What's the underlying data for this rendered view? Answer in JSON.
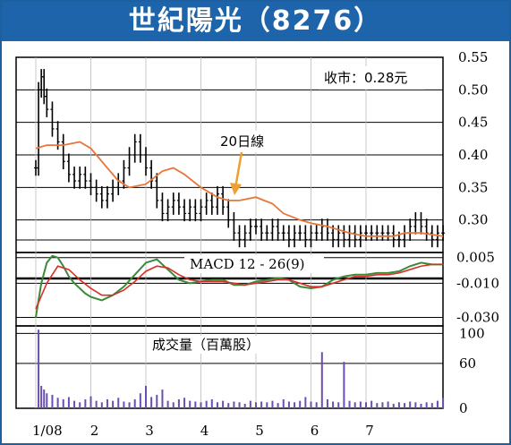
{
  "title": "世紀陽光（8276）",
  "price_label": "收市：0.28元",
  "ma_label": "20日線",
  "macd_label": "MACD 12 - 26(9)",
  "volume_label": "成交量（百萬股）",
  "colors": {
    "title_bg": "#1e64aa",
    "frame": "#1e5fa0",
    "candle": "#000000",
    "ma": "#e8763a",
    "macd_green": "#3a8a3a",
    "macd_red": "#d83028",
    "volume": "#6a4fb0",
    "arrow": "#f0a030"
  },
  "chart_data": [
    {
      "type": "line",
      "panel": "price",
      "title": "收市：0.28元",
      "x_ticks": [
        "1/08",
        "2",
        "3",
        "4",
        "5",
        "6",
        "7"
      ],
      "y_ticks": [
        "0.55",
        "0.50",
        "0.45",
        "0.40",
        "0.35",
        "0.30"
      ],
      "ylim": [
        0.25,
        0.55
      ],
      "series": [
        {
          "name": "20日線",
          "x": [
            0,
            0.2,
            0.5,
            0.8,
            1.0,
            1.3,
            1.5,
            1.7,
            2.0,
            2.3,
            2.5,
            2.7,
            3.0,
            3.3,
            3.5,
            3.7,
            4.0,
            4.3,
            4.5,
            4.8,
            5.0,
            5.3,
            5.5,
            5.7,
            6.0,
            6.3,
            6.5,
            6.7,
            7.0,
            7.4
          ],
          "values": [
            0.41,
            0.415,
            0.415,
            0.42,
            0.41,
            0.38,
            0.36,
            0.35,
            0.355,
            0.375,
            0.38,
            0.37,
            0.35,
            0.335,
            0.33,
            0.33,
            0.335,
            0.325,
            0.31,
            0.3,
            0.295,
            0.29,
            0.285,
            0.28,
            0.275,
            0.275,
            0.275,
            0.28,
            0.28,
            0.275
          ]
        },
        {
          "name": "price",
          "x": [
            0,
            0.05,
            0.1,
            0.15,
            0.2,
            0.3,
            0.4,
            0.5,
            0.6,
            0.7,
            0.8,
            0.9,
            1.0,
            1.1,
            1.2,
            1.3,
            1.4,
            1.5,
            1.6,
            1.7,
            1.8,
            1.9,
            2.0,
            2.1,
            2.2,
            2.3,
            2.4,
            2.5,
            2.6,
            2.7,
            2.8,
            2.9,
            3.0,
            3.1,
            3.2,
            3.3,
            3.4,
            3.5,
            3.6,
            3.7,
            3.8,
            3.9,
            4.0,
            4.1,
            4.2,
            4.3,
            4.4,
            4.5,
            4.6,
            4.7,
            4.8,
            4.9,
            5.0,
            5.1,
            5.2,
            5.3,
            5.4,
            5.5,
            5.6,
            5.7,
            5.8,
            5.9,
            6.0,
            6.1,
            6.2,
            6.3,
            6.4,
            6.5,
            6.6,
            6.7,
            6.8,
            6.9,
            7.0,
            7.1,
            7.2,
            7.3,
            7.4
          ],
          "values": [
            0.38,
            0.5,
            0.52,
            0.49,
            0.47,
            0.44,
            0.42,
            0.39,
            0.37,
            0.36,
            0.37,
            0.36,
            0.35,
            0.34,
            0.33,
            0.34,
            0.35,
            0.36,
            0.38,
            0.4,
            0.42,
            0.4,
            0.38,
            0.36,
            0.33,
            0.31,
            0.32,
            0.33,
            0.32,
            0.31,
            0.32,
            0.31,
            0.32,
            0.33,
            0.32,
            0.34,
            0.32,
            0.3,
            0.28,
            0.27,
            0.28,
            0.29,
            0.29,
            0.28,
            0.28,
            0.29,
            0.28,
            0.28,
            0.27,
            0.28,
            0.28,
            0.27,
            0.28,
            0.28,
            0.29,
            0.28,
            0.27,
            0.28,
            0.27,
            0.28,
            0.27,
            0.28,
            0.28,
            0.28,
            0.28,
            0.28,
            0.28,
            0.27,
            0.27,
            0.28,
            0.29,
            0.3,
            0.29,
            0.28,
            0.27,
            0.28,
            0.28
          ]
        }
      ]
    },
    {
      "type": "line",
      "panel": "macd",
      "title": "MACD 12 - 26(9)",
      "y_ticks": [
        "0.005",
        "-0.010",
        "-0.030"
      ],
      "ylim": [
        -0.035,
        0.008
      ],
      "series": [
        {
          "name": "MACD",
          "x": [
            0,
            0.1,
            0.2,
            0.3,
            0.4,
            0.5,
            0.6,
            0.7,
            0.8,
            0.9,
            1.0,
            1.2,
            1.4,
            1.6,
            1.8,
            2.0,
            2.2,
            2.4,
            2.6,
            2.8,
            3.0,
            3.2,
            3.4,
            3.6,
            3.8,
            4.0,
            4.2,
            4.4,
            4.6,
            4.8,
            5.0,
            5.2,
            5.4,
            5.6,
            5.8,
            6.0,
            6.2,
            6.4,
            6.6,
            6.8,
            7.0,
            7.2,
            7.4
          ],
          "values": [
            -0.03,
            -0.01,
            0.002,
            0.006,
            0.005,
            0.0,
            -0.006,
            -0.01,
            -0.013,
            -0.016,
            -0.018,
            -0.02,
            -0.017,
            -0.012,
            -0.005,
            0.002,
            0.004,
            -0.002,
            -0.008,
            -0.01,
            -0.009,
            -0.008,
            -0.008,
            -0.011,
            -0.011,
            -0.009,
            -0.008,
            -0.007,
            -0.008,
            -0.012,
            -0.013,
            -0.012,
            -0.008,
            -0.006,
            -0.005,
            -0.005,
            -0.004,
            -0.004,
            -0.003,
            0.0,
            0.002,
            0.001,
            0.001
          ]
        },
        {
          "name": "Signal",
          "x": [
            0,
            0.2,
            0.4,
            0.6,
            0.8,
            1.0,
            1.2,
            1.4,
            1.6,
            1.8,
            2.0,
            2.2,
            2.4,
            2.6,
            2.8,
            3.0,
            3.2,
            3.4,
            3.6,
            3.8,
            4.0,
            4.2,
            4.4,
            4.6,
            4.8,
            5.0,
            5.2,
            5.4,
            5.6,
            5.8,
            6.0,
            6.2,
            6.4,
            6.6,
            6.8,
            7.0,
            7.2,
            7.4
          ],
          "values": [
            -0.025,
            -0.01,
            0.0,
            -0.002,
            -0.008,
            -0.013,
            -0.017,
            -0.017,
            -0.014,
            -0.009,
            -0.003,
            0.0,
            -0.001,
            -0.005,
            -0.008,
            -0.009,
            -0.009,
            -0.009,
            -0.01,
            -0.011,
            -0.01,
            -0.009,
            -0.008,
            -0.008,
            -0.01,
            -0.012,
            -0.012,
            -0.01,
            -0.008,
            -0.006,
            -0.006,
            -0.005,
            -0.005,
            -0.004,
            -0.002,
            0.0,
            0.001,
            0.001
          ]
        }
      ]
    },
    {
      "type": "bar",
      "panel": "volume",
      "title": "成交量（百萬股）",
      "y_ticks": [
        "100",
        "60",
        "0"
      ],
      "ylim": [
        0,
        110
      ],
      "x": [
        0.05,
        0.1,
        0.15,
        0.2,
        0.3,
        0.4,
        0.5,
        0.6,
        0.7,
        0.8,
        0.9,
        1.0,
        1.1,
        1.2,
        1.3,
        1.4,
        1.5,
        1.6,
        1.7,
        1.8,
        1.9,
        2.0,
        2.1,
        2.2,
        2.3,
        2.4,
        2.5,
        2.6,
        2.7,
        2.8,
        2.9,
        3.0,
        3.1,
        3.2,
        3.3,
        3.4,
        3.5,
        3.6,
        3.7,
        3.8,
        3.9,
        4.0,
        4.1,
        4.2,
        4.3,
        4.4,
        4.5,
        4.6,
        4.7,
        4.8,
        4.9,
        5.0,
        5.1,
        5.2,
        5.3,
        5.4,
        5.5,
        5.6,
        5.7,
        5.8,
        5.9,
        6.0,
        6.1,
        6.2,
        6.3,
        6.4,
        6.5,
        6.6,
        6.7,
        6.8,
        6.9,
        7.0,
        7.1,
        7.2,
        7.3,
        7.4
      ],
      "values": [
        105,
        30,
        25,
        20,
        18,
        14,
        12,
        15,
        10,
        8,
        12,
        16,
        10,
        8,
        12,
        10,
        14,
        9,
        8,
        12,
        20,
        30,
        15,
        18,
        25,
        10,
        8,
        12,
        14,
        10,
        9,
        8,
        10,
        12,
        8,
        10,
        7,
        9,
        8,
        6,
        10,
        8,
        9,
        8,
        10,
        7,
        12,
        9,
        8,
        10,
        15,
        9,
        8,
        75,
        12,
        9,
        8,
        62,
        10,
        8,
        9,
        8,
        10,
        7,
        8,
        9,
        6,
        8,
        7,
        9,
        8,
        6,
        8,
        7,
        10,
        14
      ]
    }
  ]
}
